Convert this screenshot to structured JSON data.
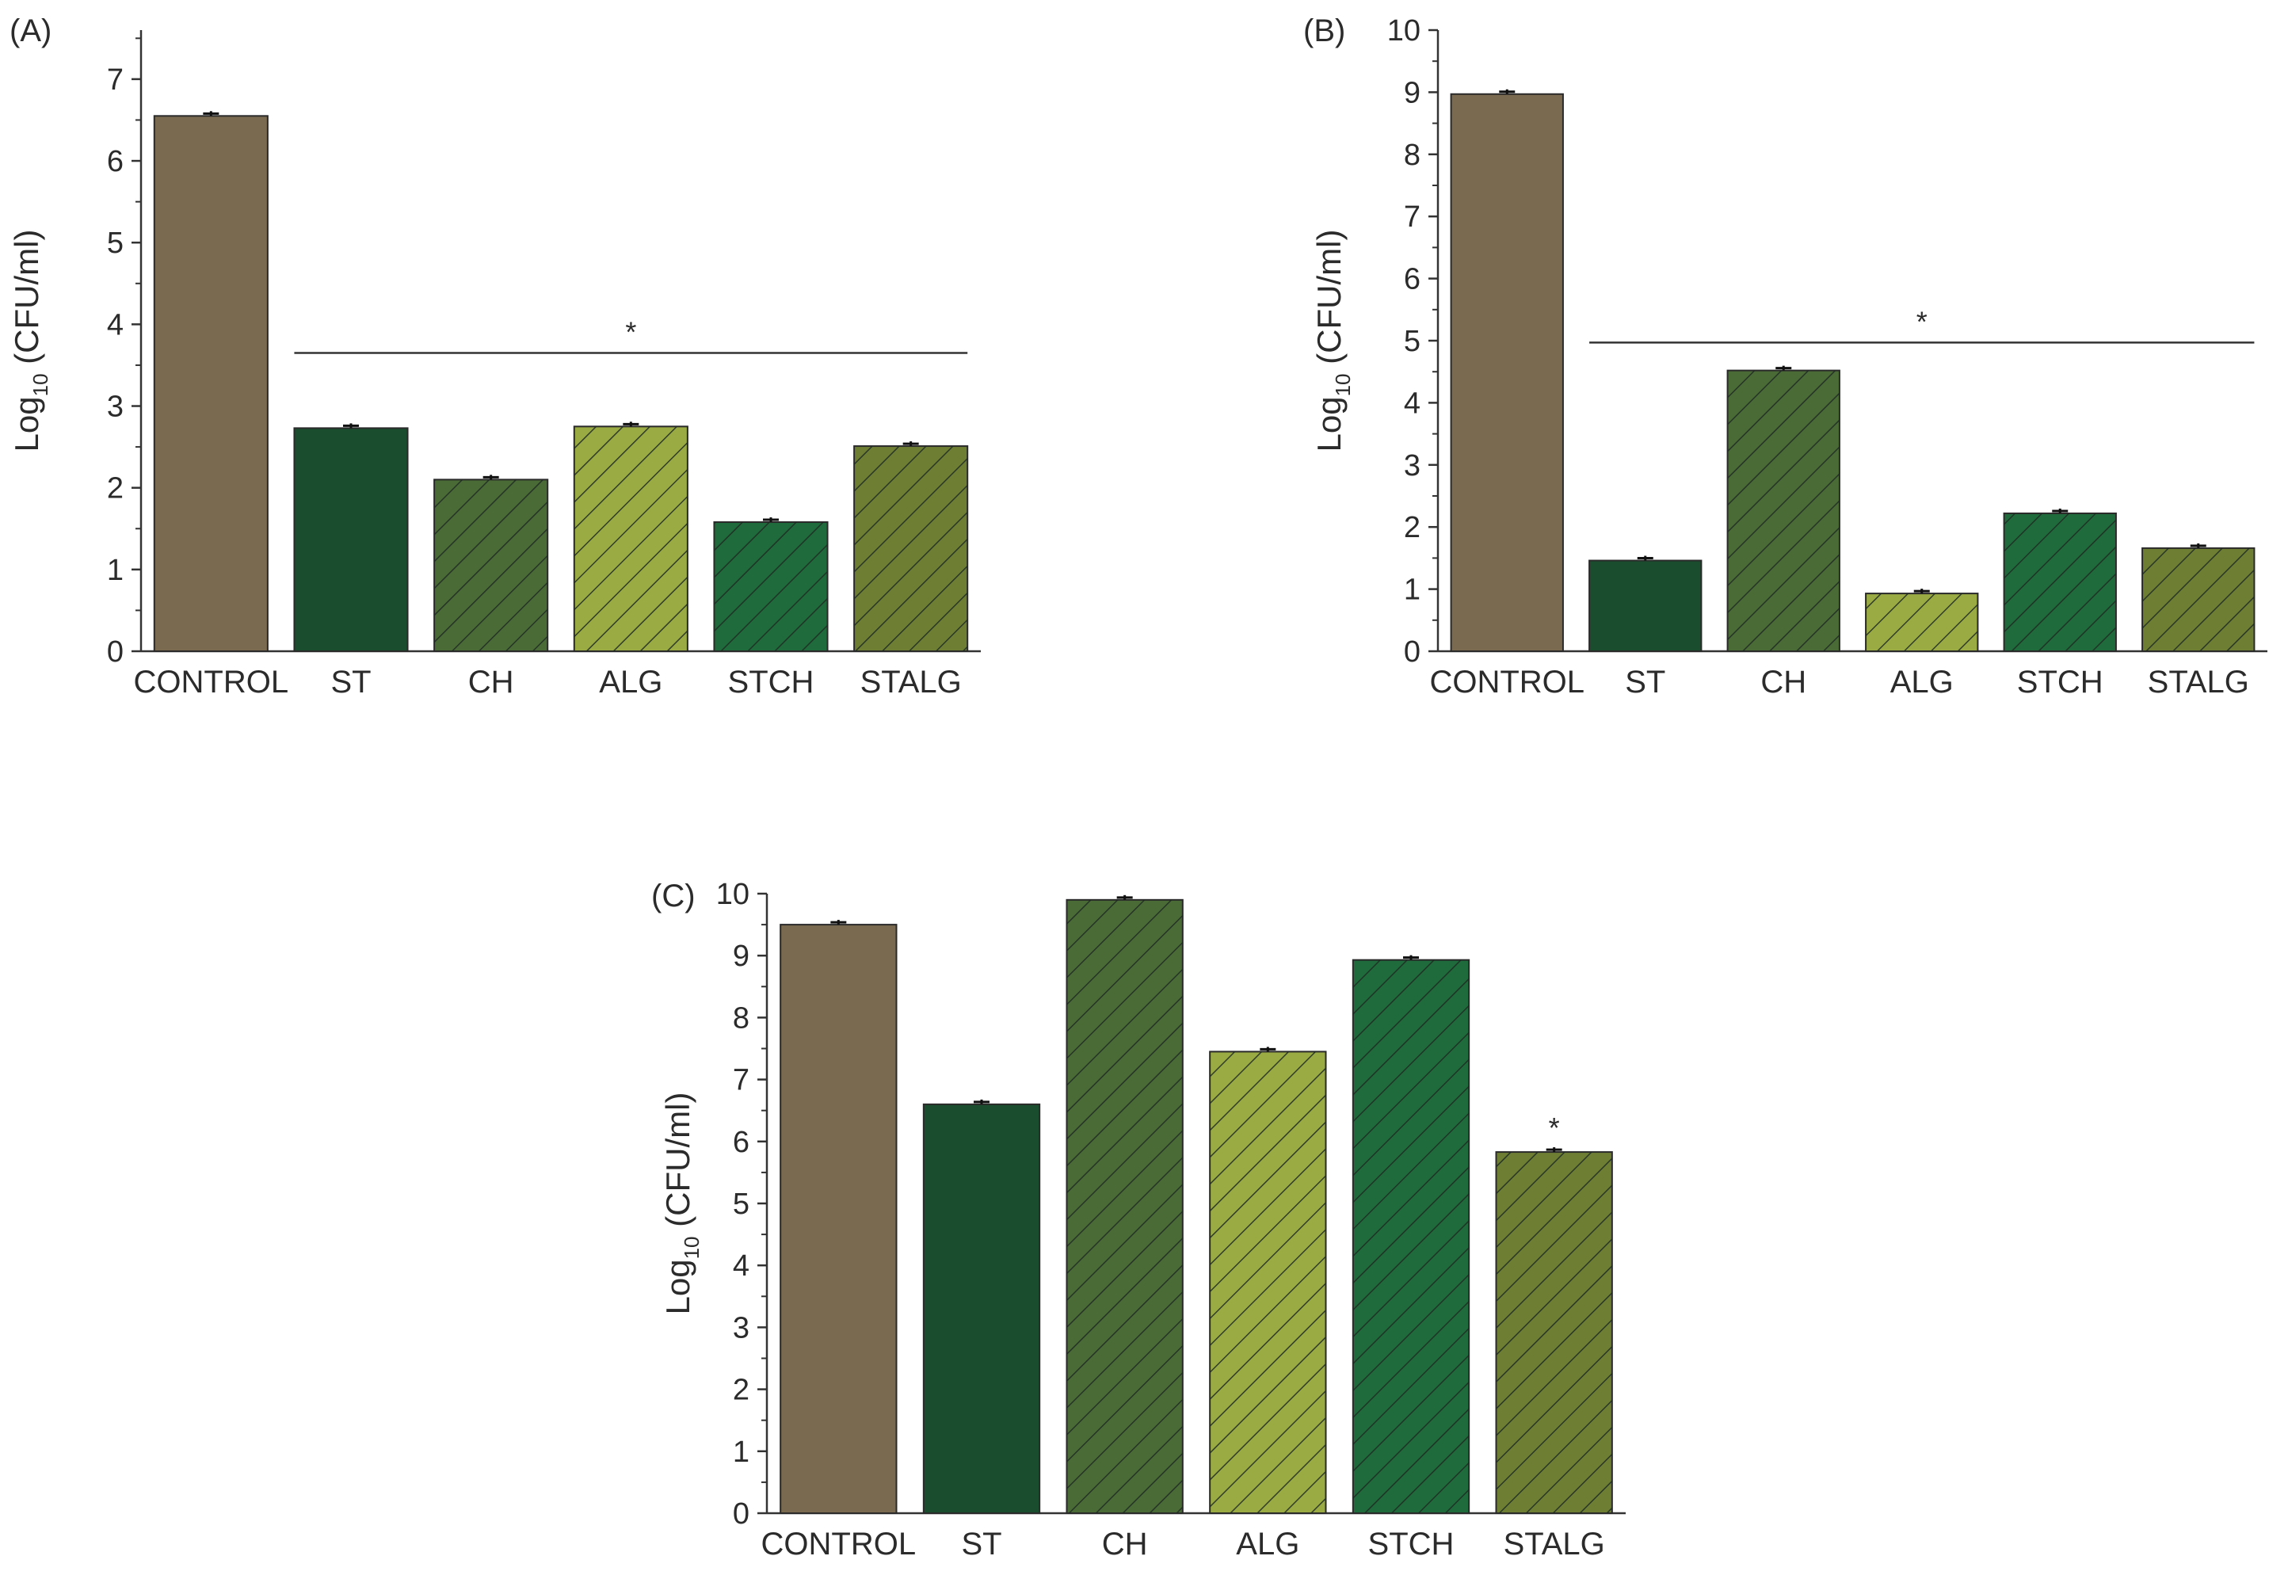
{
  "colors": {
    "CONTROL": "#7a6a4f",
    "ST": "#1a4d2e",
    "CH": "#4a6b35",
    "ALG": "#9aab44",
    "STCH": "#1f6b3b",
    "STALG": "#6e7f34",
    "axis": "#333333",
    "hatch": "#1e2a24"
  },
  "chart_data": [
    {
      "type": "bar",
      "panel_label": "(A)",
      "ylabel_prefix": "Log",
      "ylabel_sub": "10",
      "ylabel_suffix": " (CFU/ml)",
      "categories": [
        "CONTROL",
        "ST",
        "CH",
        "ALG",
        "STCH",
        "STALG"
      ],
      "values": [
        6.55,
        2.73,
        2.1,
        2.75,
        1.58,
        2.51
      ],
      "ylim": [
        0,
        7.6
      ],
      "yticks": [
        0,
        1,
        2,
        3,
        4,
        5,
        6,
        7
      ],
      "significance": {
        "from": "ST",
        "to": "STALG",
        "at": 3.65,
        "mark": "*"
      }
    },
    {
      "type": "bar",
      "panel_label": "(B)",
      "ylabel_prefix": "Log",
      "ylabel_sub": "10",
      "ylabel_suffix": " (CFU/ml)",
      "categories": [
        "CONTROL",
        "ST",
        "CH",
        "ALG",
        "STCH",
        "STALG"
      ],
      "values": [
        8.97,
        1.46,
        4.52,
        0.93,
        2.22,
        1.66
      ],
      "ylim": [
        0,
        10
      ],
      "yticks": [
        0,
        1,
        2,
        3,
        4,
        5,
        6,
        7,
        8,
        9,
        10
      ],
      "significance": {
        "from": "ST",
        "to": "STALG",
        "at": 4.97,
        "mark": "*"
      }
    },
    {
      "type": "bar",
      "panel_label": "(C)",
      "ylabel_prefix": "Log",
      "ylabel_sub": "10",
      "ylabel_suffix": " (CFU/ml)",
      "categories": [
        "CONTROL",
        "ST",
        "CH",
        "ALG",
        "STCH",
        "STALG"
      ],
      "values": [
        9.5,
        6.6,
        9.9,
        7.45,
        8.93,
        5.83
      ],
      "ylim": [
        0,
        10
      ],
      "yticks": [
        0,
        1,
        2,
        3,
        4,
        5,
        6,
        7,
        8,
        9,
        10
      ],
      "significance": {
        "on": "STALG",
        "mark": "*"
      }
    }
  ]
}
